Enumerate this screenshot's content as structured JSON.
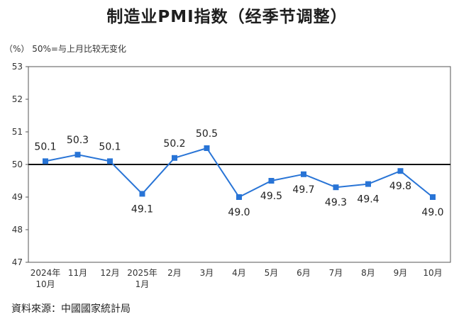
{
  "header": {
    "title": "制造业PMI指数（经季节调整）",
    "unit_note": "（%）  50%=与上月比较无变化"
  },
  "footer": {
    "source": "資料來源：中國國家統計局"
  },
  "chart_data": {
    "type": "line",
    "title": "制造业PMI指数（经季节调整）",
    "xlabel": "",
    "ylabel": "（%）",
    "categories": [
      [
        "2024年",
        "10月"
      ],
      [
        "11月"
      ],
      [
        "12月"
      ],
      [
        "2025年",
        "1月"
      ],
      [
        "2月"
      ],
      [
        "3月"
      ],
      [
        "4月"
      ],
      [
        "5月"
      ],
      [
        "6月"
      ],
      [
        "7月"
      ],
      [
        "8月"
      ],
      [
        "9月"
      ],
      [
        "10月"
      ]
    ],
    "series": [
      {
        "values": [
          50.1,
          50.3,
          50.1,
          49.1,
          50.2,
          50.5,
          49.0,
          49.5,
          49.7,
          49.3,
          49.4,
          49.8,
          49.0
        ],
        "labels": [
          "50.1",
          "50.3",
          "50.1",
          "49.1",
          "50.2",
          "50.5",
          "49.0",
          "49.5",
          "49.7",
          "49.3",
          "49.4",
          "49.8",
          "49.0"
        ],
        "color": "#2874d6"
      }
    ],
    "ylim": [
      47,
      53
    ],
    "yticks": [
      "47",
      "48",
      "49",
      "50",
      "51",
      "52",
      "53"
    ],
    "reference_line": 50,
    "grid": false,
    "legend": "none"
  }
}
